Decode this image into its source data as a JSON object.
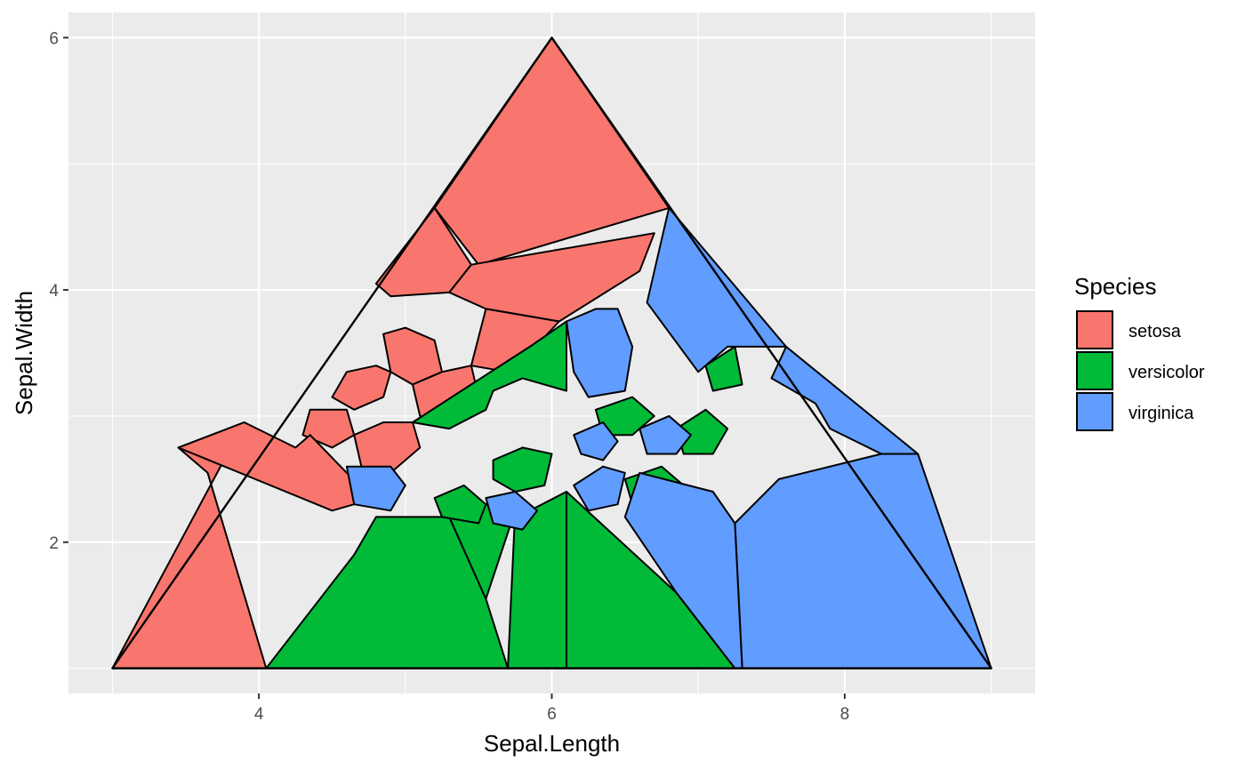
{
  "chart_data": {
    "type": "voronoi",
    "xlabel": "Sepal.Length",
    "ylabel": "Sepal.Width",
    "xlim": [
      2.7,
      9.3
    ],
    "ylim": [
      0.8,
      6.2
    ],
    "x_ticks": [
      4,
      6,
      8
    ],
    "y_ticks": [
      2,
      4,
      6
    ],
    "grid": true,
    "legend_position": "right",
    "legend": {
      "title": "Species",
      "entries": [
        {
          "label": "setosa",
          "color": "#F8766D"
        },
        {
          "label": "versicolor",
          "color": "#00BA38"
        },
        {
          "label": "virginica",
          "color": "#619CFF"
        }
      ]
    },
    "boundary": [
      [
        3,
        1
      ],
      [
        6,
        6
      ],
      [
        9,
        1
      ]
    ],
    "cells": [
      {
        "species": "setosa",
        "polygon": [
          [
            3,
            1
          ],
          [
            4.05,
            1
          ],
          [
            3.65,
            2.55
          ],
          [
            3.45,
            2.75
          ],
          [
            3.9,
            2.95
          ]
        ]
      },
      {
        "species": "setosa",
        "polygon": [
          [
            5.2,
            4.65
          ],
          [
            6,
            6
          ],
          [
            6.8,
            4.65
          ],
          [
            5.5,
            4.2
          ]
        ]
      },
      {
        "species": "setosa",
        "polygon": [
          [
            4.8,
            4.05
          ],
          [
            5.2,
            4.65
          ],
          [
            5.45,
            4.2
          ],
          [
            5.3,
            3.98
          ],
          [
            4.9,
            3.95
          ]
        ]
      },
      {
        "species": "setosa",
        "polygon": [
          [
            5.3,
            3.98
          ],
          [
            5.45,
            4.2
          ],
          [
            6.7,
            4.45
          ],
          [
            6.6,
            4.15
          ],
          [
            6.05,
            3.75
          ],
          [
            5.55,
            3.85
          ]
        ]
      },
      {
        "species": "setosa",
        "polygon": [
          [
            5.45,
            3.4
          ],
          [
            5.55,
            3.85
          ],
          [
            6.05,
            3.75
          ],
          [
            5.85,
            3.5
          ],
          [
            5.7,
            3.35
          ]
        ]
      },
      {
        "species": "setosa",
        "polygon": [
          [
            4.85,
            3.65
          ],
          [
            5.0,
            3.7
          ],
          [
            5.2,
            3.6
          ],
          [
            5.25,
            3.35
          ],
          [
            5.05,
            3.25
          ],
          [
            4.9,
            3.35
          ]
        ]
      },
      {
        "species": "setosa",
        "polygon": [
          [
            4.6,
            3.35
          ],
          [
            4.8,
            3.4
          ],
          [
            4.9,
            3.35
          ],
          [
            4.85,
            3.15
          ],
          [
            4.65,
            3.05
          ],
          [
            4.5,
            3.15
          ]
        ]
      },
      {
        "species": "setosa",
        "polygon": [
          [
            5.05,
            3.25
          ],
          [
            5.25,
            3.35
          ],
          [
            5.45,
            3.4
          ],
          [
            5.5,
            3.15
          ],
          [
            5.3,
            2.95
          ],
          [
            5.1,
            3.0
          ]
        ]
      },
      {
        "species": "setosa",
        "polygon": [
          [
            4.35,
            3.05
          ],
          [
            4.6,
            3.05
          ],
          [
            4.65,
            2.85
          ],
          [
            4.5,
            2.75
          ],
          [
            4.3,
            2.85
          ]
        ]
      },
      {
        "species": "setosa",
        "polygon": [
          [
            4.65,
            2.85
          ],
          [
            4.85,
            2.95
          ],
          [
            5.05,
            2.95
          ],
          [
            5.1,
            2.75
          ],
          [
            4.9,
            2.55
          ],
          [
            4.7,
            2.6
          ]
        ]
      },
      {
        "species": "setosa",
        "polygon": [
          [
            3.9,
            2.95
          ],
          [
            4.25,
            2.75
          ],
          [
            4.35,
            2.85
          ],
          [
            4.6,
            2.55
          ],
          [
            4.8,
            2.35
          ],
          [
            4.5,
            2.25
          ],
          [
            3.45,
            2.75
          ]
        ]
      },
      {
        "species": "versicolor",
        "polygon": [
          [
            4.05,
            1
          ],
          [
            5.7,
            1
          ],
          [
            5.55,
            1.55
          ],
          [
            5.3,
            2.2
          ],
          [
            4.8,
            2.2
          ],
          [
            4.65,
            1.9
          ]
        ]
      },
      {
        "species": "versicolor",
        "polygon": [
          [
            5.7,
            1
          ],
          [
            6.1,
            1
          ],
          [
            6.1,
            2.4
          ],
          [
            5.85,
            2.25
          ],
          [
            5.75,
            2.25
          ]
        ]
      },
      {
        "species": "versicolor",
        "polygon": [
          [
            6.1,
            1
          ],
          [
            7.25,
            1
          ],
          [
            6.85,
            1.6
          ],
          [
            6.1,
            2.4
          ]
        ]
      },
      {
        "species": "versicolor",
        "polygon": [
          [
            5.3,
            2.2
          ],
          [
            5.55,
            2.3
          ],
          [
            5.75,
            2.25
          ],
          [
            5.55,
            1.55
          ]
        ]
      },
      {
        "species": "versicolor",
        "polygon": [
          [
            5.05,
            2.95
          ],
          [
            5.3,
            2.9
          ],
          [
            5.55,
            3.05
          ],
          [
            5.6,
            3.2
          ],
          [
            5.8,
            3.3
          ],
          [
            6.1,
            3.2
          ],
          [
            6.1,
            3.75
          ],
          [
            5.85,
            3.55
          ]
        ]
      },
      {
        "species": "versicolor",
        "polygon": [
          [
            5.2,
            2.35
          ],
          [
            5.4,
            2.45
          ],
          [
            5.55,
            2.3
          ],
          [
            5.5,
            2.15
          ],
          [
            5.25,
            2.2
          ]
        ]
      },
      {
        "species": "versicolor",
        "polygon": [
          [
            5.6,
            2.65
          ],
          [
            5.8,
            2.75
          ],
          [
            6.0,
            2.7
          ],
          [
            5.95,
            2.45
          ],
          [
            5.75,
            2.4
          ],
          [
            5.6,
            2.5
          ]
        ]
      },
      {
        "species": "versicolor",
        "polygon": [
          [
            6.3,
            3.05
          ],
          [
            6.55,
            3.15
          ],
          [
            6.7,
            3.0
          ],
          [
            6.55,
            2.85
          ],
          [
            6.35,
            2.85
          ]
        ]
      },
      {
        "species": "versicolor",
        "polygon": [
          [
            6.85,
            2.9
          ],
          [
            7.05,
            3.05
          ],
          [
            7.2,
            2.9
          ],
          [
            7.1,
            2.7
          ],
          [
            6.9,
            2.7
          ]
        ]
      },
      {
        "species": "versicolor",
        "polygon": [
          [
            6.5,
            2.5
          ],
          [
            6.75,
            2.6
          ],
          [
            6.9,
            2.45
          ],
          [
            6.8,
            2.25
          ],
          [
            6.55,
            2.3
          ]
        ]
      },
      {
        "species": "versicolor",
        "polygon": [
          [
            7.05,
            3.4
          ],
          [
            7.25,
            3.55
          ],
          [
            7.3,
            3.25
          ],
          [
            7.1,
            3.2
          ]
        ]
      },
      {
        "species": "virginica",
        "polygon": [
          [
            7.3,
            1
          ],
          [
            9,
            1
          ],
          [
            8.5,
            2.7
          ],
          [
            8.25,
            2.7
          ],
          [
            7.55,
            2.5
          ],
          [
            7.25,
            2.15
          ]
        ]
      },
      {
        "species": "virginica",
        "polygon": [
          [
            6.85,
            1.6
          ],
          [
            7.25,
            1
          ],
          [
            7.3,
            1
          ],
          [
            7.25,
            2.15
          ],
          [
            7.1,
            2.4
          ],
          [
            6.6,
            2.55
          ],
          [
            6.5,
            2.2
          ]
        ]
      },
      {
        "species": "virginica",
        "polygon": [
          [
            6.8,
            4.65
          ],
          [
            7.6,
            3.55
          ],
          [
            7.2,
            3.55
          ],
          [
            7.0,
            3.35
          ],
          [
            6.65,
            3.9
          ],
          [
            6.75,
            4.4
          ]
        ]
      },
      {
        "species": "virginica",
        "polygon": [
          [
            6.1,
            3.75
          ],
          [
            6.3,
            3.85
          ],
          [
            6.45,
            3.85
          ],
          [
            6.55,
            3.55
          ],
          [
            6.5,
            3.2
          ],
          [
            6.25,
            3.15
          ],
          [
            6.15,
            3.35
          ]
        ]
      },
      {
        "species": "virginica",
        "polygon": [
          [
            7.6,
            3.55
          ],
          [
            8.5,
            2.7
          ],
          [
            8.25,
            2.7
          ],
          [
            7.9,
            2.9
          ],
          [
            7.8,
            3.1
          ],
          [
            7.5,
            3.3
          ]
        ]
      },
      {
        "species": "virginica",
        "polygon": [
          [
            6.15,
            2.45
          ],
          [
            6.35,
            2.6
          ],
          [
            6.5,
            2.55
          ],
          [
            6.45,
            2.3
          ],
          [
            6.25,
            2.25
          ]
        ]
      },
      {
        "species": "virginica",
        "polygon": [
          [
            5.55,
            2.35
          ],
          [
            5.75,
            2.4
          ],
          [
            5.9,
            2.25
          ],
          [
            5.8,
            2.1
          ],
          [
            5.6,
            2.15
          ]
        ]
      },
      {
        "species": "virginica",
        "polygon": [
          [
            4.6,
            2.6
          ],
          [
            4.9,
            2.6
          ],
          [
            5.0,
            2.45
          ],
          [
            4.9,
            2.25
          ],
          [
            4.65,
            2.3
          ]
        ]
      },
      {
        "species": "virginica",
        "polygon": [
          [
            6.6,
            2.9
          ],
          [
            6.8,
            3.0
          ],
          [
            6.95,
            2.85
          ],
          [
            6.85,
            2.7
          ],
          [
            6.65,
            2.7
          ]
        ]
      },
      {
        "species": "virginica",
        "polygon": [
          [
            6.15,
            2.85
          ],
          [
            6.35,
            2.95
          ],
          [
            6.45,
            2.8
          ],
          [
            6.35,
            2.65
          ],
          [
            6.2,
            2.7
          ]
        ]
      }
    ]
  }
}
